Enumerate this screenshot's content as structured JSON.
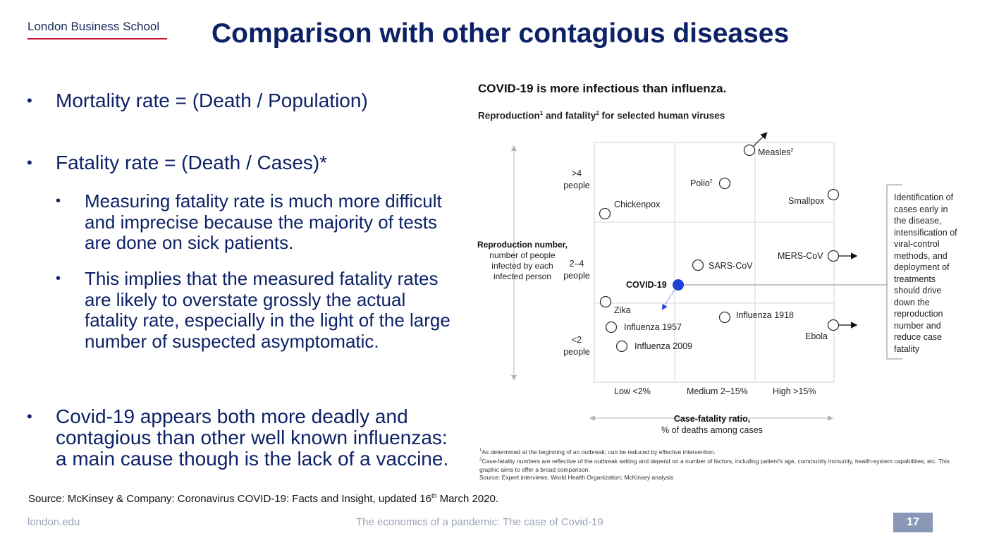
{
  "logo": "London Business School",
  "title": "Comparison with other contagious diseases",
  "bullets": [
    "Mortality rate = (Death / Population)",
    "Fatality rate = (Death / Cases)*",
    "Covid-19 appears both more deadly and contagious than other well known influenzas: a main cause though is the lack of a vaccine."
  ],
  "sub_bullets": [
    "Measuring fatality rate is much more difficult and imprecise because the majority of tests are done on sick patients.",
    "This implies that the measured fatality rates are likely to overstate grossly the actual fatality rate, especially in the light of the large number of suspected asymptomatic."
  ],
  "source": {
    "text_before": "Source: McKinsey & Company: Coronavirus COVID-19: Facts and Insight, updated 16",
    "superscript": "th",
    "text_after": " March 2020."
  },
  "footer": {
    "website": "london.edu",
    "deck_title": "The economics of a pandemic: The case of Covid-19",
    "page_number": "17"
  },
  "chart_data": {
    "type": "scatter",
    "title": "COVID-19 is more infectious than influenza.",
    "subtitle": {
      "a": "Reproduction",
      "sup1": "1",
      "b": " and fatality",
      "sup2": "2",
      "c": " for selected human viruses"
    },
    "y_axis": {
      "label_bold": "Reproduction number,",
      "label_rest": "number of people infected by each infected person",
      "categories": [
        ">4 people",
        "2–4 people",
        "<2 people"
      ]
    },
    "x_axis": {
      "label_bold": "Case-fatality ratio,",
      "label_rest": "% of deaths among cases",
      "categories": [
        "Low <2%",
        "Medium 2–15%",
        "High >15%"
      ]
    },
    "points": [
      {
        "name": "Measles",
        "sup": "2",
        "fatality": "Medium 2–15%",
        "reproduction": ">4 people",
        "arrow": "up-right"
      },
      {
        "name": "Polio",
        "sup": "2",
        "fatality": "Medium 2–15%",
        "reproduction": ">4 people"
      },
      {
        "name": "Smallpox",
        "fatality": "High >15%",
        "reproduction": ">4 people"
      },
      {
        "name": "Chickenpox",
        "fatality": "Low <2%",
        "reproduction": ">4 people"
      },
      {
        "name": "MERS-CoV",
        "fatality": "High >15%",
        "reproduction": "2–4 people",
        "arrow": "right"
      },
      {
        "name": "SARS-CoV",
        "fatality": "Medium 2–15%",
        "reproduction": "2–4 people"
      },
      {
        "name": "COVID-19",
        "fatality": "Medium 2–15%",
        "reproduction": "2–4 people",
        "highlight": true
      },
      {
        "name": "Zika",
        "fatality": "Low <2%",
        "reproduction": "<2 people"
      },
      {
        "name": "Influenza 1918",
        "fatality": "Medium 2–15%",
        "reproduction": "<2 people"
      },
      {
        "name": "Influenza 1957",
        "fatality": "Low <2%",
        "reproduction": "<2 people"
      },
      {
        "name": "Influenza 2009",
        "fatality": "Low <2%",
        "reproduction": "<2 people"
      },
      {
        "name": "Ebola",
        "fatality": "High >15%",
        "reproduction": "<2 people",
        "arrow": "right"
      }
    ],
    "annotation": "Identification of cases early in the disease, intensification of viral-control methods, and deployment of treatments should drive down the reproduction number and reduce case fatality",
    "highlight_color": "#1f3fd6",
    "footnotes": [
      {
        "sup": "1",
        "text": "As determined at the beginning of an outbreak; can be reduced by effective intervention."
      },
      {
        "sup": "2",
        "text": "Case-fatality numbers are reflective of the outbreak setting and depend on a number of factors, including patient's age, community immunity, health-system capabilities, etc. This graphic aims to offer a broad comparison."
      },
      {
        "sup": "",
        "text": "Source: Expert interviews; World Health Organization; McKinsey analysis"
      }
    ]
  }
}
